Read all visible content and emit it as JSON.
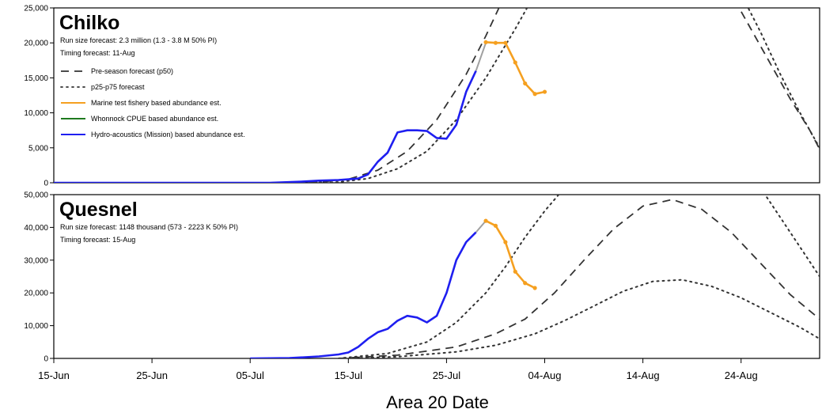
{
  "colors": {
    "forecast": "#333333",
    "marine": "#f5a020",
    "whonnock": "#1f7a1f",
    "hydro": "#1f1ff0",
    "connector": "#a0a0a0"
  },
  "legend": [
    {
      "label": "Pre-season forecast (p50)",
      "style": "dashed",
      "color_key": "forecast"
    },
    {
      "label": "p25-p75 forecast",
      "style": "dotted",
      "color_key": "forecast"
    },
    {
      "label": "Marine test fishery based abundance est.",
      "style": "solid",
      "color_key": "marine"
    },
    {
      "label": "Whonnock CPUE based abundance est.",
      "style": "solid",
      "color_key": "whonnock"
    },
    {
      "label": "Hydro-acoustics (Mission) based abundance est.",
      "style": "solid",
      "color_key": "hydro"
    }
  ],
  "chart_data": [
    {
      "type": "line",
      "title": "Chilko",
      "info": [
        "Run size forecast: 2.3 million (1.3 - 3.8 M 50% PI)",
        "Timing forecast: 11-Aug"
      ],
      "xlabel": "Area 20 Date",
      "ylabel": "",
      "xlim": [
        "2019-06-15",
        "2019-09-01"
      ],
      "ylim": [
        0,
        25000
      ],
      "y_ticks": [
        0,
        5000,
        10000,
        15000,
        20000,
        25000
      ],
      "y_tick_labels": [
        "0",
        "5,000",
        "10,000",
        "15,000",
        "20,000",
        "25,000"
      ],
      "grid": false,
      "legend_position": "top-left",
      "series": [
        {
          "name": "Pre-season forecast (p50)",
          "style": "dashed",
          "x": [
            "2019-06-15",
            "2019-07-06",
            "2019-07-12",
            "2019-07-15",
            "2019-07-18",
            "2019-07-21",
            "2019-07-24",
            "2019-07-27",
            "2019-07-29",
            "2019-07-31",
            "2019-08-23",
            "2019-08-25",
            "2019-08-27",
            "2019-08-29",
            "2019-08-31",
            "2019-09-01"
          ],
          "y": [
            0,
            0,
            100,
            500,
            1800,
            4500,
            9000,
            15500,
            21000,
            27000,
            27000,
            22000,
            17000,
            12000,
            7500,
            4800
          ]
        },
        {
          "name": "p25-p75 forecast (p25)",
          "style": "dotted",
          "x": [
            "2019-06-15",
            "2019-07-08",
            "2019-07-14",
            "2019-07-17",
            "2019-07-20",
            "2019-07-23",
            "2019-07-26",
            "2019-07-29",
            "2019-08-01",
            "2019-08-03"
          ],
          "y": [
            0,
            0,
            100,
            600,
            2000,
            4500,
            9000,
            15000,
            22000,
            27000
          ]
        },
        {
          "name": "p25-p75 forecast (p75)",
          "style": "dotted",
          "x": [
            "2019-08-24",
            "2019-08-26",
            "2019-08-28",
            "2019-08-30",
            "2019-09-01"
          ],
          "y": [
            27000,
            21500,
            15500,
            10000,
            5000
          ]
        },
        {
          "name": "Hydro-acoustics (Mission) based abundance est.",
          "style": "solid",
          "x": [
            "2019-06-15",
            "2019-07-07",
            "2019-07-10",
            "2019-07-12",
            "2019-07-14",
            "2019-07-16",
            "2019-07-17",
            "2019-07-18",
            "2019-07-19",
            "2019-07-20",
            "2019-07-21",
            "2019-07-22",
            "2019-07-23",
            "2019-07-24",
            "2019-07-25",
            "2019-07-26",
            "2019-07-27",
            "2019-07-28"
          ],
          "y": [
            0,
            0,
            150,
            300,
            400,
            600,
            1200,
            3000,
            4300,
            7200,
            7500,
            7500,
            7400,
            6400,
            6300,
            8300,
            13000,
            16000
          ]
        },
        {
          "name": "connector",
          "style": "solid",
          "color_key": "connector",
          "x": [
            "2019-07-28",
            "2019-07-29"
          ],
          "y": [
            16000,
            20000
          ]
        },
        {
          "name": "Marine test fishery based abundance est.",
          "style": "solid",
          "x": [
            "2019-07-29",
            "2019-07-30",
            "2019-07-31",
            "2019-08-01",
            "2019-08-02",
            "2019-08-03",
            "2019-08-04"
          ],
          "y": [
            20100,
            20000,
            20000,
            17200,
            14200,
            12700,
            13000
          ]
        }
      ]
    },
    {
      "type": "line",
      "title": "Quesnel",
      "info": [
        "Run size forecast: 1148 thousand (573 - 2223 K 50% PI)",
        "Timing forecast: 15-Aug"
      ],
      "xlabel": "Area 20 Date",
      "ylabel": "",
      "xlim": [
        "2019-06-15",
        "2019-09-01"
      ],
      "ylim": [
        0,
        50000
      ],
      "y_ticks": [
        0,
        10000,
        20000,
        30000,
        40000,
        50000
      ],
      "y_tick_labels": [
        "0",
        "10,000",
        "20,000",
        "30,000",
        "40,000",
        "50,000"
      ],
      "grid": false,
      "legend_position": "none",
      "series": [
        {
          "name": "Pre-season forecast (p50)",
          "style": "dashed",
          "x": [
            "2019-07-14",
            "2019-07-20",
            "2019-07-26",
            "2019-07-30",
            "2019-08-02",
            "2019-08-05",
            "2019-08-08",
            "2019-08-11",
            "2019-08-14",
            "2019-08-17",
            "2019-08-20",
            "2019-08-23",
            "2019-08-26",
            "2019-08-29",
            "2019-09-01"
          ],
          "y": [
            0,
            1000,
            3500,
            7500,
            12000,
            20000,
            30000,
            39500,
            46500,
            48500,
            45500,
            38500,
            29000,
            19500,
            12000
          ]
        },
        {
          "name": "p25-p75 forecast (p25)",
          "style": "dotted",
          "x": [
            "2019-07-14",
            "2019-07-20",
            "2019-07-26",
            "2019-07-30",
            "2019-08-03",
            "2019-08-06",
            "2019-08-09",
            "2019-08-12",
            "2019-08-15",
            "2019-08-18",
            "2019-08-21",
            "2019-08-24",
            "2019-08-27",
            "2019-08-30",
            "2019-09-01"
          ],
          "y": [
            0,
            500,
            2000,
            4000,
            7500,
            11500,
            16000,
            20500,
            23500,
            24000,
            22000,
            18500,
            14000,
            9500,
            6000
          ]
        },
        {
          "name": "p25-p75 forecast (p75)",
          "style": "dotted",
          "x": [
            "2019-07-14",
            "2019-07-19",
            "2019-07-23",
            "2019-07-26",
            "2019-07-29",
            "2019-07-31",
            "2019-08-02",
            "2019-08-04",
            "2019-08-06"
          ],
          "y": [
            0,
            1500,
            5000,
            11000,
            20000,
            28000,
            37000,
            45000,
            52000
          ]
        },
        {
          "name": "p25-p75 forecast (p75 tail)",
          "style": "dotted",
          "x": [
            "2019-08-26",
            "2019-08-28",
            "2019-08-30",
            "2019-09-01"
          ],
          "y": [
            52000,
            43000,
            34000,
            25000
          ]
        },
        {
          "name": "Hydro-acoustics (Mission) based abundance est.",
          "style": "solid",
          "x": [
            "2019-07-05",
            "2019-07-09",
            "2019-07-12",
            "2019-07-14",
            "2019-07-15",
            "2019-07-16",
            "2019-07-17",
            "2019-07-18",
            "2019-07-19",
            "2019-07-20",
            "2019-07-21",
            "2019-07-22",
            "2019-07-23",
            "2019-07-24",
            "2019-07-25",
            "2019-07-26",
            "2019-07-27",
            "2019-07-28"
          ],
          "y": [
            0,
            100,
            600,
            1200,
            1800,
            3500,
            6000,
            8000,
            9000,
            11500,
            13000,
            12500,
            11000,
            13000,
            20000,
            30000,
            35500,
            38500
          ]
        },
        {
          "name": "connector",
          "style": "solid",
          "color_key": "connector",
          "x": [
            "2019-07-28",
            "2019-07-29"
          ],
          "y": [
            38500,
            42000
          ]
        },
        {
          "name": "Marine test fishery based abundance est.",
          "style": "solid",
          "x": [
            "2019-07-29",
            "2019-07-30",
            "2019-07-31",
            "2019-08-01",
            "2019-08-02",
            "2019-08-03"
          ],
          "y": [
            42000,
            40500,
            35500,
            26500,
            23000,
            21500
          ]
        }
      ]
    }
  ],
  "x_ticks": [
    {
      "date": "2019-06-15",
      "label": "15-Jun"
    },
    {
      "date": "2019-06-25",
      "label": "25-Jun"
    },
    {
      "date": "2019-07-05",
      "label": "05-Jul"
    },
    {
      "date": "2019-07-15",
      "label": "15-Jul"
    },
    {
      "date": "2019-07-25",
      "label": "25-Jul"
    },
    {
      "date": "2019-08-04",
      "label": "04-Aug"
    },
    {
      "date": "2019-08-14",
      "label": "14-Aug"
    },
    {
      "date": "2019-08-24",
      "label": "24-Aug"
    }
  ]
}
